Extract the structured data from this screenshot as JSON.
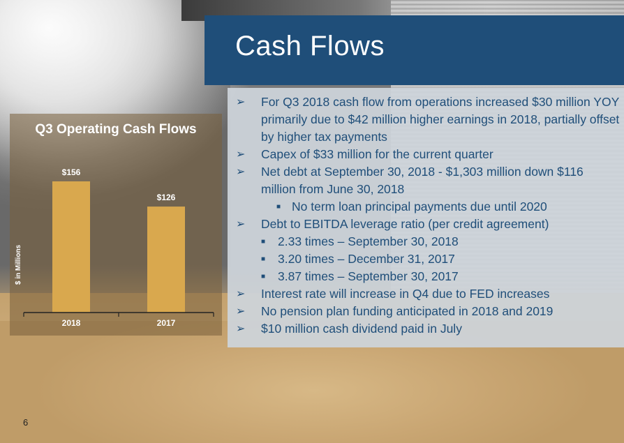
{
  "slide": {
    "title": "Cash Flows",
    "page_number": "6"
  },
  "bullets": [
    {
      "level": 0,
      "marker": "➢",
      "text": "For Q3 2018 cash flow from operations increased $30 million YOY primarily due to $42 million higher earnings in 2018, partially offset by higher tax payments"
    },
    {
      "level": 0,
      "marker": "➢",
      "text": "Capex of $33 million for the current quarter"
    },
    {
      "level": 0,
      "marker": "➢",
      "text": "Net debt at September 30, 2018 - $1,303 million down $116 million from June 30, 2018"
    },
    {
      "level": 2,
      "marker": "■",
      "text": "No term loan principal payments due until 2020"
    },
    {
      "level": 0,
      "marker": "➢",
      "text": "Debt to EBITDA leverage ratio (per credit agreement)"
    },
    {
      "level": 1,
      "marker": "■",
      "text": "2.33 times – September 30, 2018"
    },
    {
      "level": 1,
      "marker": "■",
      "text": "3.20 times – December 31, 2017"
    },
    {
      "level": 1,
      "marker": "■",
      "text": "3.87 times – September 30, 2017"
    },
    {
      "level": 0,
      "marker": "➢",
      "text": "Interest rate will increase in Q4 due to FED increases"
    },
    {
      "level": 0,
      "marker": "➢",
      "text": "No pension plan funding anticipated in 2018 and 2019"
    },
    {
      "level": 0,
      "marker": "➢",
      "text": "$10 million cash dividend paid in July"
    }
  ],
  "chart_data": {
    "type": "bar",
    "title": "Q3 Operating Cash Flows",
    "categories": [
      "2018",
      "2017"
    ],
    "values": [
      156,
      126
    ],
    "data_labels": [
      "$156",
      "$126"
    ],
    "ylabel": "$ in Millions",
    "ylim": [
      0,
      180
    ],
    "grid": false,
    "legend": "none",
    "bar_color": "#d9a84e",
    "label_color": "#ffffff"
  }
}
